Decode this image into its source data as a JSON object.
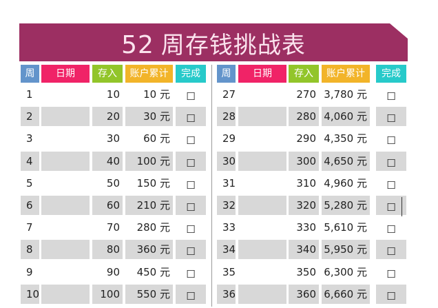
{
  "title": {
    "number": "52",
    "text": "周存钱挑战表"
  },
  "headers": [
    "周",
    "日期",
    "存入",
    "账户累计",
    "完成"
  ],
  "header_colors": [
    "#5b8fc9",
    "#f0185f",
    "#8dc21f",
    "#f2b01e",
    "#1cc8c8"
  ],
  "row_stripe_color": "#d8d8d8",
  "currency": "元",
  "checkbox": "☐",
  "left_rows": [
    {
      "week": "1",
      "deposit": "10",
      "total": "10"
    },
    {
      "week": "2",
      "deposit": "20",
      "total": "30"
    },
    {
      "week": "3",
      "deposit": "30",
      "total": "60"
    },
    {
      "week": "4",
      "deposit": "40",
      "total": "100"
    },
    {
      "week": "5",
      "deposit": "50",
      "total": "150"
    },
    {
      "week": "6",
      "deposit": "60",
      "total": "210"
    },
    {
      "week": "7",
      "deposit": "70",
      "total": "280"
    },
    {
      "week": "8",
      "deposit": "80",
      "total": "360"
    },
    {
      "week": "9",
      "deposit": "90",
      "total": "450"
    },
    {
      "week": "10",
      "deposit": "100",
      "total": "550"
    }
  ],
  "right_rows": [
    {
      "week": "27",
      "deposit": "270",
      "total": "3,780"
    },
    {
      "week": "28",
      "deposit": "280",
      "total": "4,060"
    },
    {
      "week": "29",
      "deposit": "290",
      "total": "4,350"
    },
    {
      "week": "30",
      "deposit": "300",
      "total": "4,650"
    },
    {
      "week": "31",
      "deposit": "310",
      "total": "4,960"
    },
    {
      "week": "32",
      "deposit": "320",
      "total": "5,280"
    },
    {
      "week": "33",
      "deposit": "330",
      "total": "5,610"
    },
    {
      "week": "34",
      "deposit": "340",
      "total": "5,950"
    },
    {
      "week": "35",
      "deposit": "350",
      "total": "6,300"
    },
    {
      "week": "36",
      "deposit": "360",
      "total": "6,660"
    }
  ]
}
